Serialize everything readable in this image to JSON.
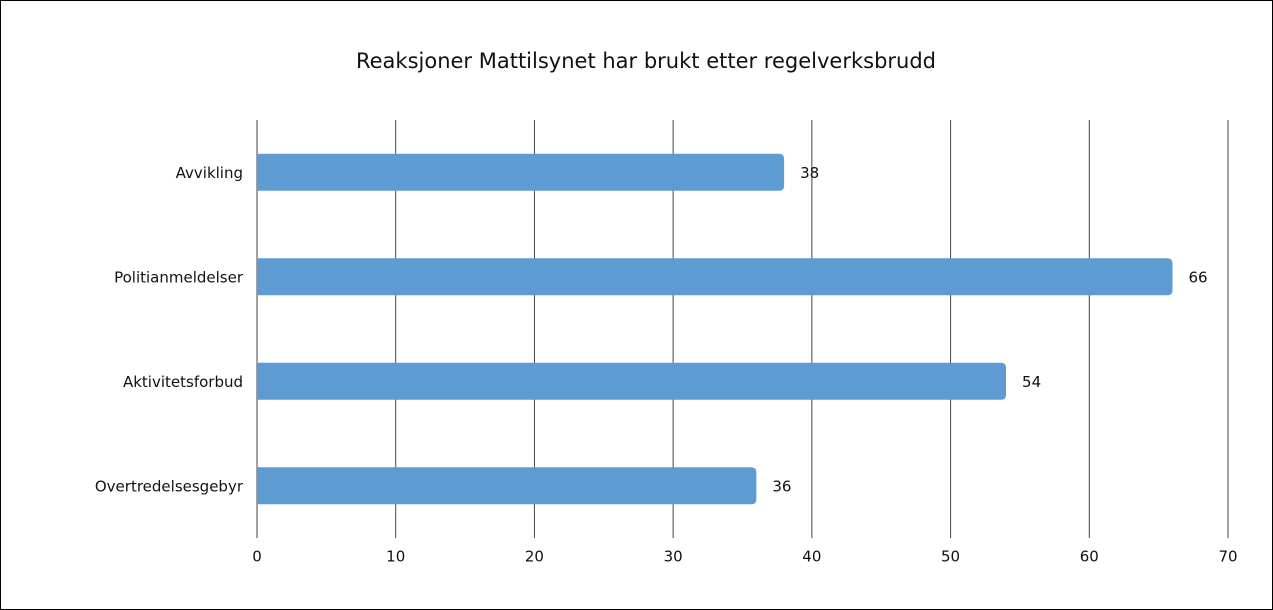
{
  "chart_data": {
    "type": "bar",
    "orientation": "horizontal",
    "title": "Reaksjoner Mattilsynet har brukt etter regelverksbrudd",
    "categories": [
      "Avvikling",
      "Politianmeldelser",
      "Aktivitetsforbud",
      "Overtredelsesgebyr"
    ],
    "values": [
      38,
      66,
      54,
      36
    ],
    "color": "#5f9bd3",
    "xlim": [
      0,
      70
    ],
    "xticks": [
      0,
      10,
      20,
      30,
      40,
      50,
      60,
      70
    ],
    "grid": true
  }
}
